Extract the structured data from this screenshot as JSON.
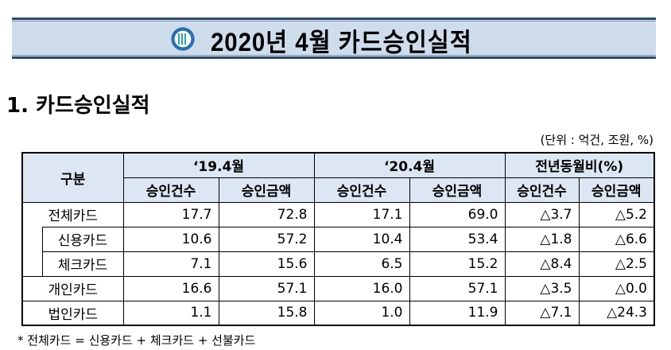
{
  "banner": {
    "title": "2020년 4월 카드승인실적",
    "logo": "emblem-logo"
  },
  "section_title": "1. 카드승인실적",
  "unit": "(단위 : 억건, 조원, %)",
  "table": {
    "category_header": "구분",
    "groups": [
      "‘19.4월",
      "‘20.4월",
      "전년동월비(%)"
    ],
    "subheaders": [
      "승인건수",
      "승인금액",
      "승인건수",
      "승인금액",
      "승인건수",
      "승인금액"
    ],
    "rows": [
      {
        "label": "전체카드",
        "values": [
          "17.7",
          "72.8",
          "17.1",
          "69.0",
          "△3.7",
          "△5.2"
        ]
      },
      {
        "label": "신용카드",
        "values": [
          "10.6",
          "57.2",
          "10.4",
          "53.4",
          "△1.8",
          "△6.6"
        ]
      },
      {
        "label": "체크카드",
        "values": [
          "7.1",
          "15.6",
          "6.5",
          "15.2",
          "△8.4",
          "△2.5"
        ]
      },
      {
        "label": "개인카드",
        "values": [
          "16.6",
          "57.1",
          "16.0",
          "57.1",
          "△3.5",
          "△0.0"
        ]
      },
      {
        "label": "법인카드",
        "values": [
          "1.1",
          "15.8",
          "1.0",
          "11.9",
          "△7.1",
          "△24.3"
        ]
      }
    ]
  },
  "footnote": "* 전체카드 = 신용카드 + 체크카드 + 선불카드"
}
